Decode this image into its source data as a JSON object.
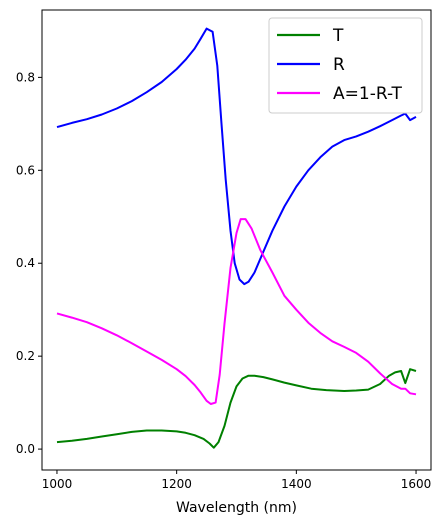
{
  "chart_data": {
    "type": "line",
    "xlabel": "Wavelength (nm)",
    "ylabel": "",
    "xlim": [
      975,
      1625
    ],
    "ylim": [
      -0.045,
      0.945
    ],
    "xticks": [
      1000,
      1200,
      1400,
      1600
    ],
    "yticks": [
      0.0,
      0.2,
      0.4,
      0.6,
      0.8
    ],
    "xtick_labels": [
      "1000",
      "1200",
      "1400",
      "1600"
    ],
    "ytick_labels": [
      "0.0",
      "0.2",
      "0.4",
      "0.6",
      "0.8"
    ],
    "grid": false,
    "legend_position": "top-right",
    "series": [
      {
        "name": "T",
        "color": "#008000",
        "x": [
          1000,
          1025,
          1050,
          1075,
          1100,
          1125,
          1150,
          1175,
          1200,
          1215,
          1230,
          1245,
          1255,
          1262,
          1270,
          1280,
          1290,
          1300,
          1310,
          1320,
          1330,
          1345,
          1360,
          1380,
          1400,
          1425,
          1450,
          1480,
          1500,
          1520,
          1540,
          1555,
          1565,
          1575,
          1582,
          1590,
          1600
        ],
        "y": [
          0.015,
          0.018,
          0.022,
          0.027,
          0.032,
          0.037,
          0.04,
          0.04,
          0.038,
          0.035,
          0.03,
          0.022,
          0.012,
          0.003,
          0.015,
          0.05,
          0.1,
          0.135,
          0.152,
          0.158,
          0.158,
          0.155,
          0.15,
          0.143,
          0.137,
          0.13,
          0.127,
          0.125,
          0.126,
          0.128,
          0.14,
          0.158,
          0.165,
          0.168,
          0.142,
          0.172,
          0.168
        ]
      },
      {
        "name": "R",
        "color": "#0000ff",
        "x": [
          1000,
          1025,
          1050,
          1075,
          1100,
          1125,
          1150,
          1175,
          1200,
          1215,
          1230,
          1240,
          1250,
          1260,
          1268,
          1275,
          1282,
          1290,
          1297,
          1305,
          1313,
          1320,
          1330,
          1345,
          1360,
          1380,
          1400,
          1420,
          1440,
          1460,
          1480,
          1500,
          1520,
          1540,
          1560,
          1575,
          1582,
          1590,
          1600
        ],
        "y": [
          0.693,
          0.702,
          0.71,
          0.72,
          0.733,
          0.749,
          0.768,
          0.79,
          0.818,
          0.838,
          0.862,
          0.883,
          0.905,
          0.898,
          0.825,
          0.7,
          0.58,
          0.47,
          0.4,
          0.365,
          0.355,
          0.36,
          0.38,
          0.425,
          0.47,
          0.522,
          0.565,
          0.6,
          0.628,
          0.651,
          0.665,
          0.673,
          0.683,
          0.695,
          0.708,
          0.718,
          0.722,
          0.708,
          0.715
        ]
      },
      {
        "name": "A=1-R-T",
        "color": "#ff00ff",
        "x": [
          1000,
          1025,
          1050,
          1075,
          1100,
          1125,
          1150,
          1175,
          1200,
          1215,
          1230,
          1240,
          1250,
          1257,
          1265,
          1272,
          1280,
          1290,
          1300,
          1307,
          1315,
          1325,
          1340,
          1360,
          1380,
          1400,
          1420,
          1440,
          1460,
          1480,
          1500,
          1520,
          1540,
          1560,
          1575,
          1582,
          1590,
          1600
        ],
        "y": [
          0.292,
          0.283,
          0.273,
          0.26,
          0.245,
          0.228,
          0.21,
          0.192,
          0.172,
          0.157,
          0.138,
          0.122,
          0.104,
          0.097,
          0.1,
          0.16,
          0.27,
          0.39,
          0.465,
          0.495,
          0.495,
          0.475,
          0.428,
          0.38,
          0.33,
          0.3,
          0.272,
          0.25,
          0.232,
          0.22,
          0.207,
          0.188,
          0.163,
          0.14,
          0.13,
          0.13,
          0.12,
          0.118
        ]
      }
    ]
  }
}
